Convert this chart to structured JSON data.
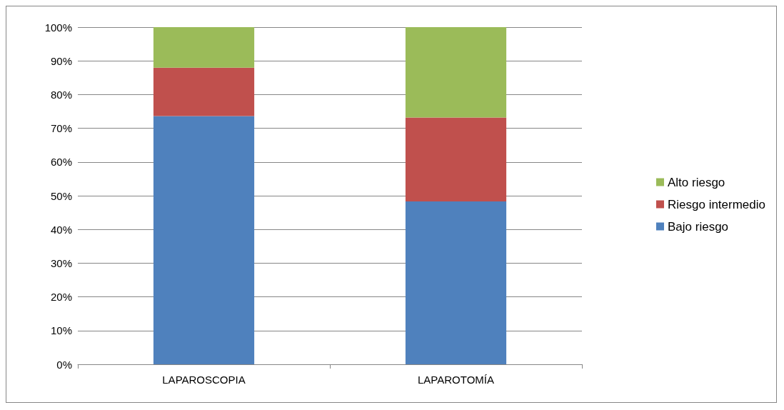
{
  "chart_data": {
    "type": "bar",
    "stacked": true,
    "categories": [
      "LAPAROSCOPIA",
      "LAPAROTOMÍA"
    ],
    "series": [
      {
        "name": "Bajo riesgo",
        "color": "#4f81bd",
        "values": [
          73.6,
          48.3
        ]
      },
      {
        "name": "Riesgo intermedio",
        "color": "#c0504d",
        "values": [
          14.4,
          24.9
        ]
      },
      {
        "name": "Alto riesgo",
        "color": "#9bbb59",
        "values": [
          12.0,
          26.8
        ]
      }
    ],
    "ylim": [
      0,
      100
    ],
    "yticks": [
      {
        "value": 0,
        "label": "0%"
      },
      {
        "value": 10,
        "label": "10%"
      },
      {
        "value": 20,
        "label": "20%"
      },
      {
        "value": 30,
        "label": "30%"
      },
      {
        "value": 40,
        "label": "40%"
      },
      {
        "value": 50,
        "label": "50%"
      },
      {
        "value": 60,
        "label": "60%"
      },
      {
        "value": 70,
        "label": "70%"
      },
      {
        "value": 80,
        "label": "80%"
      },
      {
        "value": 90,
        "label": "90%"
      },
      {
        "value": 100,
        "label": "100%"
      }
    ],
    "grid": "y",
    "legend": "right"
  }
}
